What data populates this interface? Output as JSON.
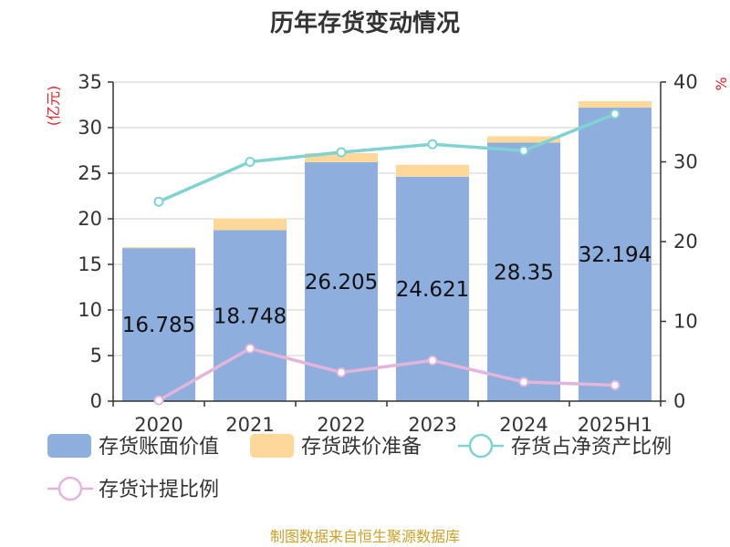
{
  "chart_data": {
    "type": "bar",
    "title": "历年存货变动情况",
    "categories": [
      "2020",
      "2021",
      "2022",
      "2023",
      "2024",
      "2025H1"
    ],
    "y_left_unit": "(亿元)",
    "y_right_unit": "%",
    "ylim_left": [
      0,
      35
    ],
    "yticks_left": [
      0,
      5,
      10,
      15,
      20,
      25,
      30,
      35
    ],
    "ylim_right": [
      0,
      40
    ],
    "yticks_right": [
      0,
      10,
      20,
      30,
      40
    ],
    "grid": true,
    "legend_position": "bottom",
    "series": [
      {
        "name": "存货账面价值",
        "type": "bar",
        "axis": "left",
        "color": "#8eaedd",
        "values": [
          16.785,
          18.748,
          26.205,
          24.621,
          28.35,
          32.194
        ],
        "labels": [
          "16.785",
          "18.748",
          "26.205",
          "24.621",
          "28.35",
          "32.194"
        ]
      },
      {
        "name": "存货跌价准备",
        "type": "bar",
        "axis": "left",
        "stacked": true,
        "color": "#fdd89a",
        "values": [
          0.1,
          1.3,
          1.0,
          1.3,
          0.7,
          0.7
        ]
      },
      {
        "name": "存货占净资产比例",
        "type": "line",
        "axis": "right",
        "color": "#7fd3d1",
        "values": [
          25.0,
          30.0,
          31.2,
          32.2,
          31.4,
          36.0
        ]
      },
      {
        "name": "存货计提比例",
        "type": "line",
        "axis": "right",
        "color": "#e3b5db",
        "values": [
          0.1,
          6.6,
          3.6,
          5.1,
          2.4,
          2.0
        ]
      }
    ],
    "source": "制图数据来自恒生聚源数据库"
  }
}
